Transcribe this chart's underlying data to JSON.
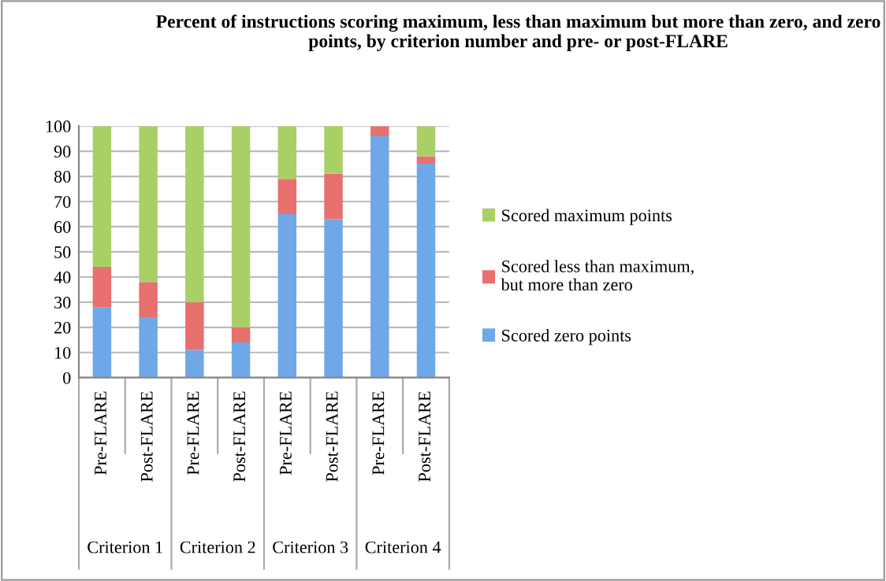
{
  "chart_data": {
    "type": "bar",
    "stacked": true,
    "title": "Percent of instructions scoring maximum, less than maximum but more than zero, and zero points, by criterion number and pre- or post-FLARE",
    "categories": [
      "Pre-FLARE",
      "Post-FLARE",
      "Pre-FLARE",
      "Post-FLARE",
      "Pre-FLARE",
      "Post-FLARE",
      "Pre-FLARE",
      "Post-FLARE"
    ],
    "annotations": [
      "Criterion 1",
      "Criterion 2",
      "Criterion 3",
      "Criterion 4"
    ],
    "series": [
      {
        "name": "Scored zero points",
        "color": "#6fa8e8",
        "values": [
          28,
          24,
          11,
          14,
          65,
          63,
          96,
          85
        ]
      },
      {
        "name": "Scored less than maximum, but more than zero",
        "color": "#e8706f",
        "values": [
          16,
          14,
          19,
          6,
          14,
          18,
          4,
          3
        ]
      },
      {
        "name": "Scored maximum points",
        "color": "#a9d067",
        "values": [
          56,
          62,
          70,
          80,
          21,
          19,
          0,
          12
        ]
      }
    ],
    "ylim": [
      0,
      100
    ],
    "yticks": [
      0,
      10,
      20,
      30,
      40,
      50,
      60,
      70,
      80,
      90,
      100
    ],
    "grid": "y",
    "legend": "right"
  }
}
